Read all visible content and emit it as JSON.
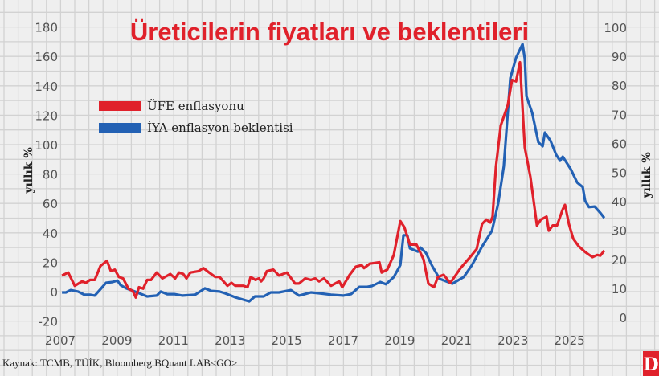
{
  "chart_data": {
    "type": "line",
    "title": "Üreticilerin fiyatları ve beklentileri",
    "ylabel_left": "yıllık %",
    "ylabel_right": "yıllık %",
    "x_ticks": [
      "2007",
      "2009",
      "2011",
      "2013",
      "2015",
      "2017",
      "2019",
      "2021",
      "2023",
      "2025"
    ],
    "y_left_ticks": [
      "180",
      "160",
      "140",
      "120",
      "100",
      "80",
      "60",
      "40",
      "20",
      "0",
      "-20"
    ],
    "y_right_ticks": [
      "100",
      "90",
      "80",
      "70",
      "60",
      "50",
      "40",
      "30",
      "20",
      "10",
      "0"
    ],
    "ylim_left": [
      -20,
      180
    ],
    "ylim_right": [
      0,
      100
    ],
    "grid": true,
    "legend_position": "top-left",
    "source": "Kaynak: TCMB, TÜİK, Bloomberg BQuant LAB<GO>",
    "logo": "D",
    "colors": {
      "ufe": "#e0212b",
      "iya": "#2361b4",
      "title": "#e0212b"
    },
    "series": [
      {
        "name": "ÜFE enflasyonu",
        "axis": "left",
        "points": [
          [
            2007.06,
            11
          ],
          [
            2007.28,
            13
          ],
          [
            2007.51,
            4
          ],
          [
            2007.77,
            7
          ],
          [
            2007.91,
            6
          ],
          [
            2008.05,
            8
          ],
          [
            2008.22,
            8
          ],
          [
            2008.42,
            17.5
          ],
          [
            2008.65,
            21
          ],
          [
            2008.79,
            14
          ],
          [
            2008.93,
            15
          ],
          [
            2009.07,
            10
          ],
          [
            2009.22,
            9
          ],
          [
            2009.41,
            2
          ],
          [
            2009.56,
            0.5
          ],
          [
            2009.67,
            -4
          ],
          [
            2009.78,
            3
          ],
          [
            2009.93,
            2
          ],
          [
            2010.07,
            8
          ],
          [
            2010.21,
            8
          ],
          [
            2010.41,
            13
          ],
          [
            2010.61,
            9
          ],
          [
            2010.89,
            12
          ],
          [
            2011.06,
            9
          ],
          [
            2011.2,
            13
          ],
          [
            2011.35,
            12
          ],
          [
            2011.46,
            9
          ],
          [
            2011.6,
            13
          ],
          [
            2011.89,
            14
          ],
          [
            2012.06,
            16
          ],
          [
            2012.26,
            13
          ],
          [
            2012.48,
            10
          ],
          [
            2012.63,
            10
          ],
          [
            2012.91,
            4
          ],
          [
            2013.05,
            6
          ],
          [
            2013.19,
            4
          ],
          [
            2013.48,
            4
          ],
          [
            2013.62,
            3
          ],
          [
            2013.73,
            10
          ],
          [
            2013.9,
            8
          ],
          [
            2014.02,
            9
          ],
          [
            2014.1,
            7
          ],
          [
            2014.19,
            9
          ],
          [
            2014.3,
            14
          ],
          [
            2014.53,
            15
          ],
          [
            2014.73,
            11
          ],
          [
            2015.01,
            13
          ],
          [
            2015.3,
            5.5
          ],
          [
            2015.44,
            5.5
          ],
          [
            2015.66,
            9
          ],
          [
            2015.86,
            8
          ],
          [
            2016.01,
            9
          ],
          [
            2016.15,
            7
          ],
          [
            2016.32,
            9
          ],
          [
            2016.57,
            4
          ],
          [
            2016.86,
            7
          ],
          [
            2016.97,
            3
          ],
          [
            2017.23,
            11.5
          ],
          [
            2017.45,
            17
          ],
          [
            2017.65,
            18
          ],
          [
            2017.74,
            16
          ],
          [
            2017.94,
            19
          ],
          [
            2018.28,
            20
          ],
          [
            2018.36,
            13
          ],
          [
            2018.56,
            15
          ],
          [
            2018.79,
            25
          ],
          [
            2019.02,
            48
          ],
          [
            2019.16,
            44
          ],
          [
            2019.36,
            32
          ],
          [
            2019.59,
            32
          ],
          [
            2019.84,
            22
          ],
          [
            2020.01,
            5.5
          ],
          [
            2020.21,
            3
          ],
          [
            2020.35,
            10
          ],
          [
            2020.55,
            11.5
          ],
          [
            2020.78,
            6
          ],
          [
            2020.86,
            8
          ],
          [
            2021.15,
            16
          ],
          [
            2021.55,
            25
          ],
          [
            2021.72,
            29
          ],
          [
            2021.91,
            46
          ],
          [
            2022.06,
            49
          ],
          [
            2022.2,
            47
          ],
          [
            2022.28,
            51
          ],
          [
            2022.4,
            85
          ],
          [
            2022.57,
            113
          ],
          [
            2022.82,
            127
          ],
          [
            2022.97,
            144
          ],
          [
            2023.11,
            143
          ],
          [
            2023.25,
            156
          ],
          [
            2023.42,
            98
          ],
          [
            2023.62,
            78
          ],
          [
            2023.85,
            45
          ],
          [
            2023.99,
            49
          ],
          [
            2024.19,
            51
          ],
          [
            2024.27,
            41.5
          ],
          [
            2024.41,
            45
          ],
          [
            2024.56,
            45
          ],
          [
            2024.76,
            56
          ],
          [
            2024.84,
            59
          ],
          [
            2024.98,
            46
          ],
          [
            2025.13,
            36
          ],
          [
            2025.32,
            31
          ],
          [
            2025.55,
            27
          ],
          [
            2025.81,
            23.5
          ],
          [
            2025.98,
            25
          ],
          [
            2026.09,
            24.5
          ],
          [
            2026.23,
            28
          ]
        ]
      },
      {
        "name": "İYA enflasyon beklentisi",
        "axis": "right",
        "points": [
          [
            2007.06,
            8.6
          ],
          [
            2007.2,
            8.6
          ],
          [
            2007.37,
            9.4
          ],
          [
            2007.63,
            8.9
          ],
          [
            2007.85,
            7.8
          ],
          [
            2008.05,
            7.8
          ],
          [
            2008.22,
            7.5
          ],
          [
            2008.42,
            9.7
          ],
          [
            2008.62,
            11.9
          ],
          [
            2008.85,
            12.2
          ],
          [
            2009.02,
            12.7
          ],
          [
            2009.13,
            11.1
          ],
          [
            2009.33,
            10
          ],
          [
            2009.64,
            8.9
          ],
          [
            2010.07,
            7.2
          ],
          [
            2010.41,
            7.5
          ],
          [
            2010.55,
            8.9
          ],
          [
            2010.78,
            8
          ],
          [
            2011.03,
            8
          ],
          [
            2011.32,
            7.5
          ],
          [
            2011.77,
            7.8
          ],
          [
            2012.11,
            10
          ],
          [
            2012.34,
            9.1
          ],
          [
            2012.63,
            8.9
          ],
          [
            2012.82,
            8.3
          ],
          [
            2013.11,
            7.2
          ],
          [
            2013.19,
            6.9
          ],
          [
            2013.68,
            5.5
          ],
          [
            2013.88,
            7.2
          ],
          [
            2014.19,
            7.2
          ],
          [
            2014.44,
            8.6
          ],
          [
            2014.73,
            8.6
          ],
          [
            2015.15,
            9.4
          ],
          [
            2015.44,
            7.5
          ],
          [
            2015.86,
            8.6
          ],
          [
            2016.15,
            8.3
          ],
          [
            2016.57,
            7.8
          ],
          [
            2017.0,
            7.5
          ],
          [
            2017.28,
            8
          ],
          [
            2017.57,
            10.5
          ],
          [
            2017.85,
            10.5
          ],
          [
            2018.02,
            10.8
          ],
          [
            2018.31,
            12.2
          ],
          [
            2018.51,
            11.4
          ],
          [
            2018.79,
            13.9
          ],
          [
            2019.02,
            18
          ],
          [
            2019.13,
            28.3
          ],
          [
            2019.27,
            28.3
          ],
          [
            2019.36,
            23.8
          ],
          [
            2019.64,
            22.7
          ],
          [
            2019.73,
            24.1
          ],
          [
            2019.93,
            22.2
          ],
          [
            2020.13,
            18
          ],
          [
            2020.41,
            13.3
          ],
          [
            2020.86,
            11.6
          ],
          [
            2021.26,
            13.9
          ],
          [
            2021.55,
            18
          ],
          [
            2021.91,
            24.4
          ],
          [
            2022.26,
            29.9
          ],
          [
            2022.48,
            39.3
          ],
          [
            2022.68,
            52.1
          ],
          [
            2022.91,
            82.5
          ],
          [
            2023.11,
            89.5
          ],
          [
            2023.34,
            94.2
          ],
          [
            2023.42,
            89.2
          ],
          [
            2023.48,
            76.2
          ],
          [
            2023.68,
            70.6
          ],
          [
            2023.9,
            60.4
          ],
          [
            2024.05,
            59
          ],
          [
            2024.13,
            63.7
          ],
          [
            2024.33,
            60.9
          ],
          [
            2024.53,
            56
          ],
          [
            2024.67,
            54
          ],
          [
            2024.76,
            55.4
          ],
          [
            2025.04,
            51.2
          ],
          [
            2025.27,
            46.5
          ],
          [
            2025.47,
            44.9
          ],
          [
            2025.55,
            40.2
          ],
          [
            2025.69,
            38
          ],
          [
            2025.89,
            38.2
          ],
          [
            2026.09,
            36
          ],
          [
            2026.23,
            34.3
          ]
        ]
      }
    ]
  }
}
